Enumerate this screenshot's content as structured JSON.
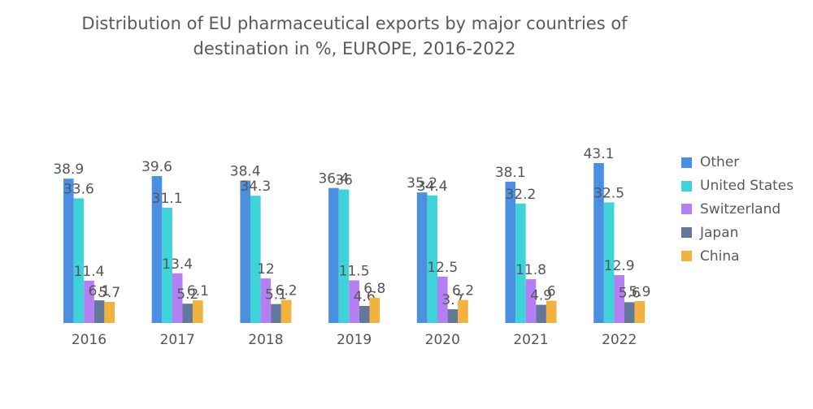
{
  "chart_data": {
    "type": "bar",
    "title_lines": [
      "Distribution of EU pharmaceutical exports by major countries of",
      "destination in %, EUROPE, 2016-2022"
    ],
    "categories": [
      "2016",
      "2017",
      "2018",
      "2019",
      "2020",
      "2021",
      "2022"
    ],
    "series": [
      {
        "name": "Other",
        "color": "#4a8fe0",
        "values": [
          38.9,
          39.6,
          38.4,
          36.4,
          35.2,
          38.1,
          43.1
        ]
      },
      {
        "name": "United States",
        "color": "#3ed2d9",
        "values": [
          33.6,
          31.1,
          34.3,
          36,
          34.4,
          32.2,
          32.5
        ]
      },
      {
        "name": "Switzerland",
        "color": "#b47ff2",
        "values": [
          11.4,
          13.4,
          12,
          11.5,
          12.5,
          11.8,
          12.9
        ]
      },
      {
        "name": "Japan",
        "color": "#63779a",
        "values": [
          6.1,
          5.2,
          5.1,
          4.6,
          3.7,
          4.9,
          5.6
        ]
      },
      {
        "name": "China",
        "color": "#f2b23e",
        "values": [
          5.7,
          6.1,
          6.2,
          6.8,
          6.2,
          6,
          5.9
        ]
      }
    ],
    "ylim": [
      0,
      43.1
    ],
    "grid": false,
    "legend_position": "right"
  }
}
